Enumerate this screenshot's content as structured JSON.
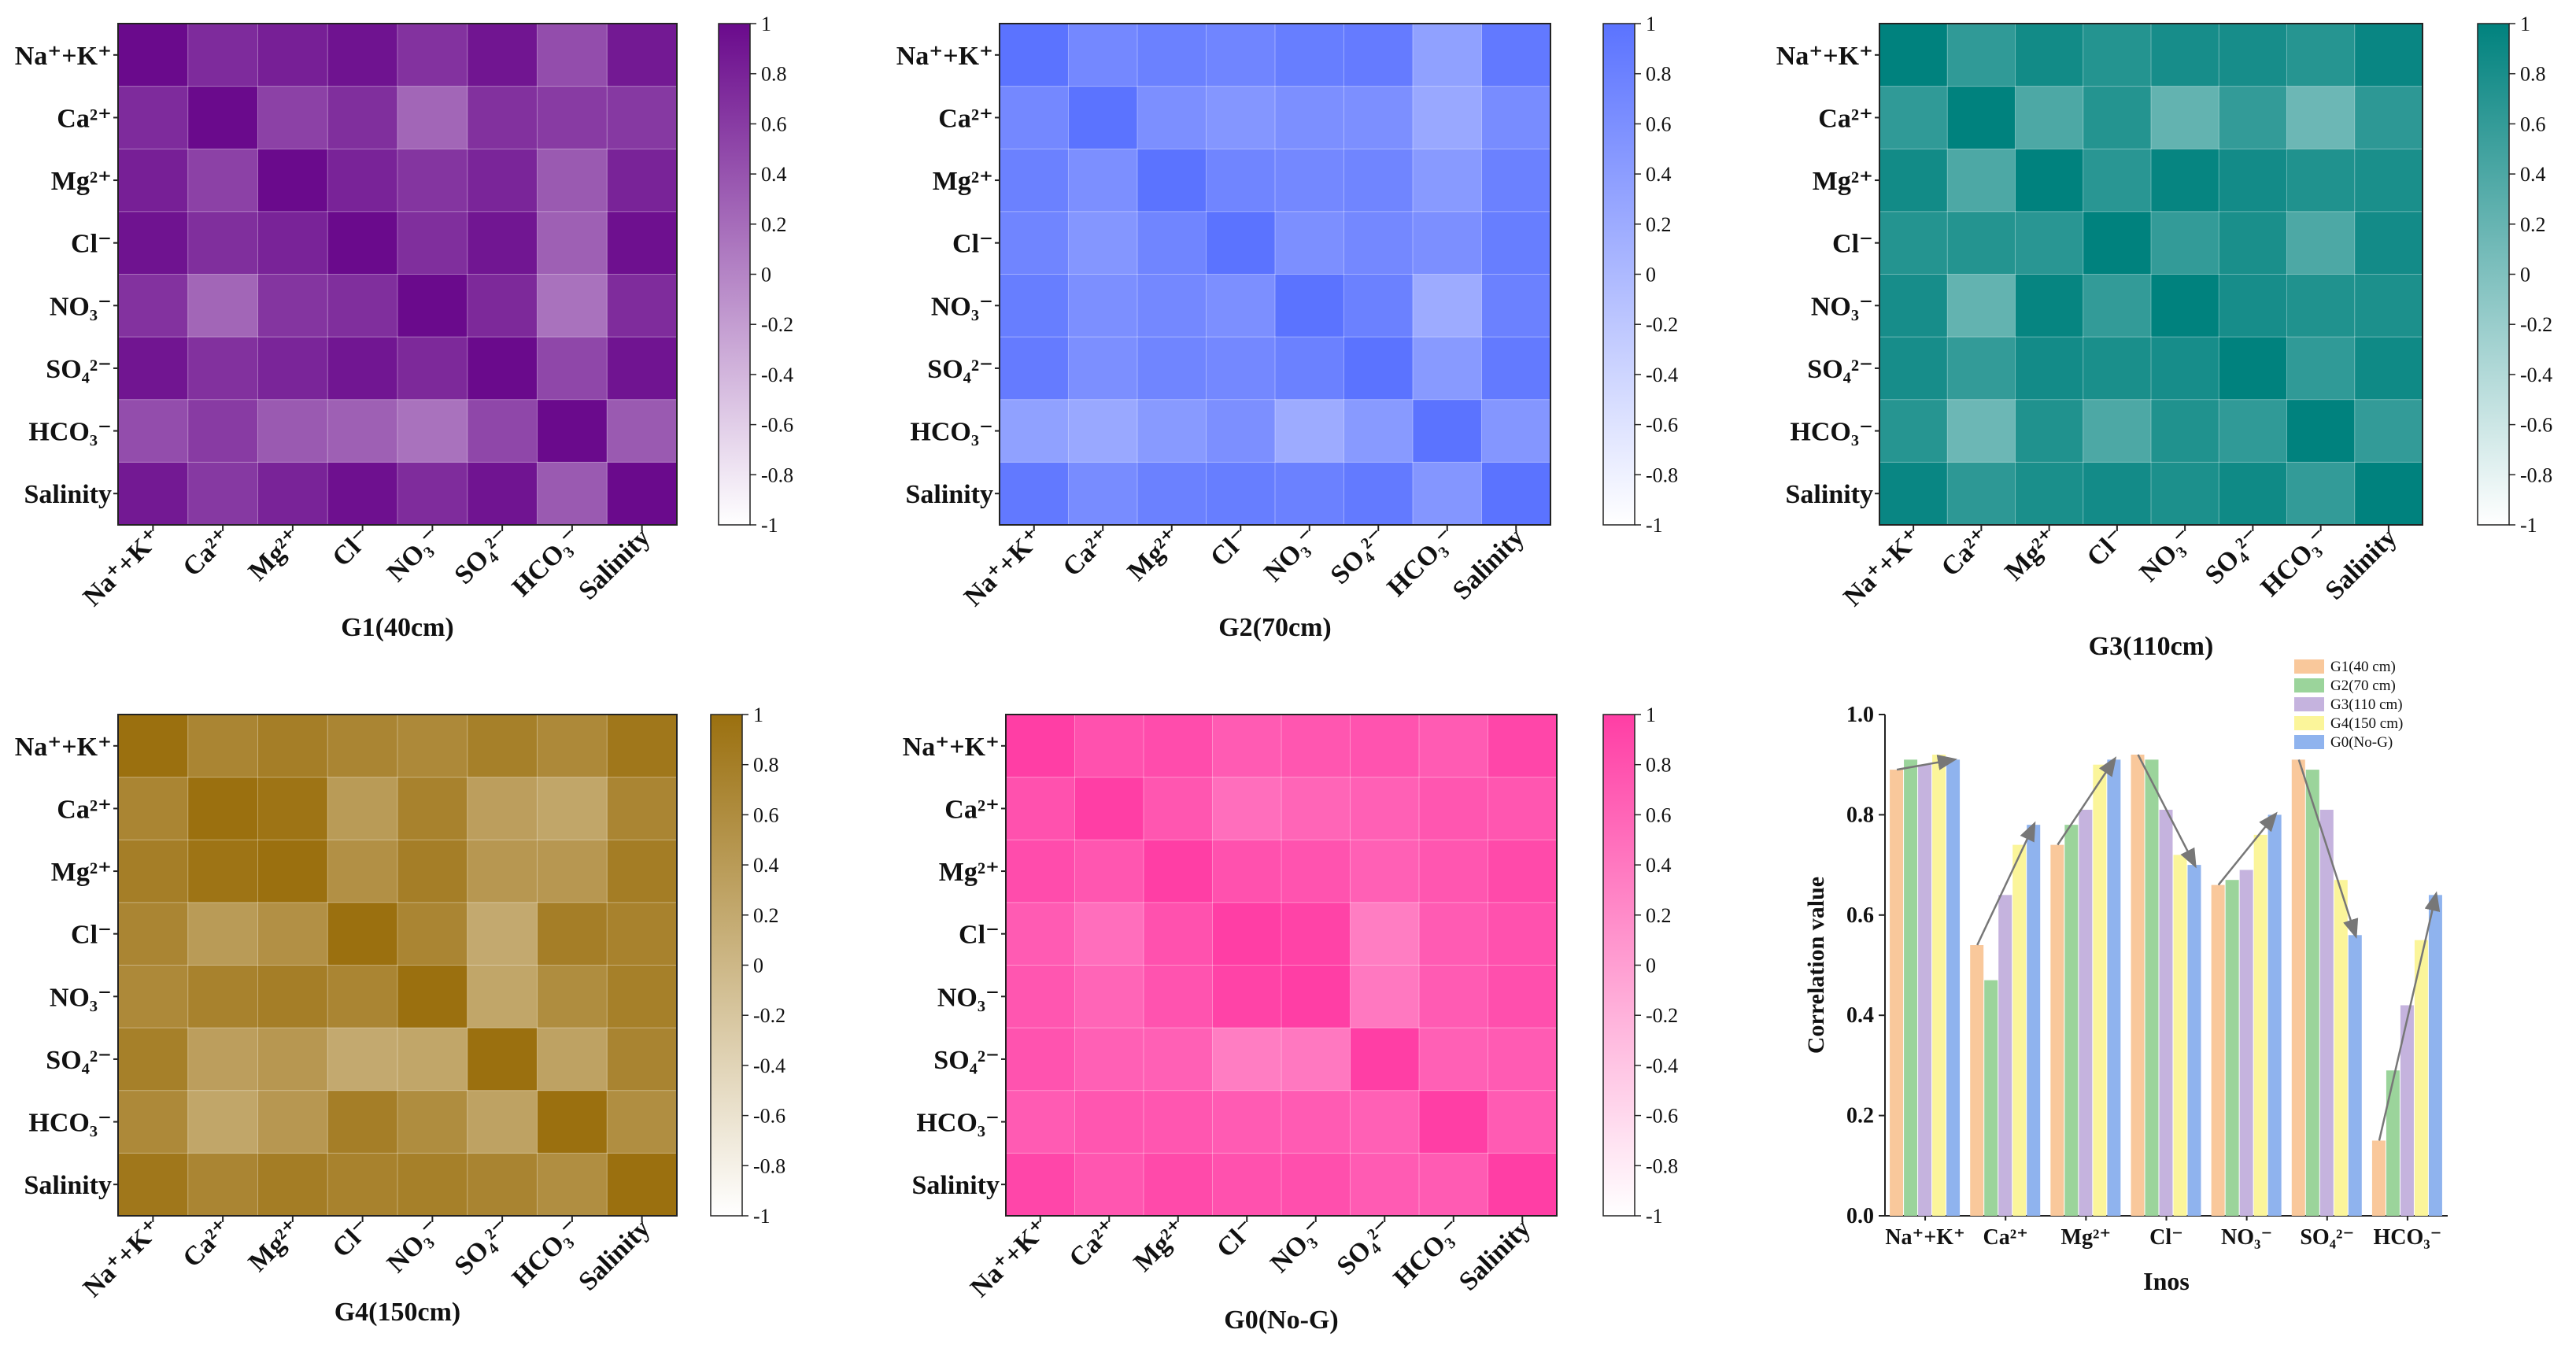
{
  "chart_data": [
    {
      "type": "heatmap",
      "title": "G1(40cm)",
      "scheme": "purple",
      "rows": [
        "Na⁺+K⁺",
        "Ca²⁺",
        "Mg²⁺",
        "Cl⁻",
        "NO₃⁻",
        "SO₄²⁻",
        "HCO₃⁻",
        "Salinity"
      ],
      "cols": [
        "Na⁺+K⁺",
        "Ca²⁺",
        "Mg²⁺",
        "Cl⁻",
        "NO₃⁻",
        "SO₄²⁻",
        "HCO₃⁻",
        "Salinity"
      ],
      "values": [
        [
          1.0,
          0.73,
          0.83,
          0.93,
          0.67,
          0.91,
          0.45,
          0.88
        ],
        [
          0.73,
          1.0,
          0.55,
          0.7,
          0.25,
          0.68,
          0.6,
          0.62
        ],
        [
          0.83,
          0.55,
          1.0,
          0.8,
          0.65,
          0.78,
          0.35,
          0.8
        ],
        [
          0.93,
          0.7,
          0.8,
          1.0,
          0.7,
          0.9,
          0.3,
          0.95
        ],
        [
          0.67,
          0.25,
          0.65,
          0.7,
          1.0,
          0.75,
          0.15,
          0.72
        ],
        [
          0.91,
          0.68,
          0.78,
          0.9,
          0.75,
          1.0,
          0.5,
          0.92
        ],
        [
          0.45,
          0.6,
          0.35,
          0.3,
          0.15,
          0.5,
          1.0,
          0.35
        ],
        [
          0.88,
          0.62,
          0.8,
          0.95,
          0.72,
          0.92,
          0.35,
          1.0
        ]
      ],
      "colorbar_ticks": [
        "1",
        "0.8",
        "0.6",
        "0.4",
        "0.2",
        "0",
        "-0.2",
        "-0.4",
        "-0.6",
        "-0.8",
        "-1"
      ],
      "vmin": -1,
      "vmax": 1
    },
    {
      "type": "heatmap",
      "title": "G2(70cm)",
      "scheme": "blue",
      "rows": [
        "Na⁺+K⁺",
        "Ca²⁺",
        "Mg²⁺",
        "Cl⁻",
        "NO₃⁻",
        "SO₄²⁻",
        "HCO₃⁻",
        "Salinity"
      ],
      "cols": [
        "Na⁺+K⁺",
        "Ca²⁺",
        "Mg²⁺",
        "Cl⁻",
        "NO₃⁻",
        "SO₄²⁻",
        "HCO₃⁻",
        "Salinity"
      ],
      "values": [
        [
          1.0,
          0.7,
          0.8,
          0.75,
          0.85,
          0.88,
          0.35,
          0.92
        ],
        [
          0.7,
          1.0,
          0.6,
          0.5,
          0.6,
          0.6,
          0.25,
          0.65
        ],
        [
          0.8,
          0.6,
          1.0,
          0.75,
          0.7,
          0.75,
          0.45,
          0.8
        ],
        [
          0.75,
          0.5,
          0.75,
          1.0,
          0.6,
          0.7,
          0.6,
          0.85
        ],
        [
          0.85,
          0.6,
          0.7,
          0.6,
          1.0,
          0.8,
          0.2,
          0.8
        ],
        [
          0.88,
          0.6,
          0.75,
          0.7,
          0.8,
          1.0,
          0.45,
          0.9
        ],
        [
          0.35,
          0.25,
          0.45,
          0.6,
          0.2,
          0.45,
          1.0,
          0.5
        ],
        [
          0.92,
          0.65,
          0.8,
          0.85,
          0.8,
          0.9,
          0.5,
          1.0
        ]
      ],
      "colorbar_ticks": [
        "1",
        "0.8",
        "0.6",
        "0.4",
        "0.2",
        "0",
        "-0.2",
        "-0.4",
        "-0.6",
        "-0.8",
        "-1"
      ],
      "vmin": -1,
      "vmax": 1
    },
    {
      "type": "heatmap",
      "title": "G3(110cm)",
      "scheme": "teal",
      "rows": [
        "Na⁺+K⁺",
        "Ca²⁺",
        "Mg²⁺",
        "Cl⁻",
        "NO₃⁻",
        "SO₄²⁻",
        "HCO₃⁻",
        "Salinity"
      ],
      "cols": [
        "Na⁺+K⁺",
        "Ca²⁺",
        "Mg²⁺",
        "Cl⁻",
        "NO₃⁻",
        "SO₄²⁻",
        "HCO₃⁻",
        "Salinity"
      ],
      "values": [
        [
          1.0,
          0.62,
          0.86,
          0.72,
          0.82,
          0.82,
          0.7,
          0.93
        ],
        [
          0.62,
          1.0,
          0.4,
          0.72,
          0.22,
          0.6,
          0.15,
          0.65
        ],
        [
          0.86,
          0.4,
          1.0,
          0.68,
          0.95,
          0.85,
          0.75,
          0.8
        ],
        [
          0.72,
          0.72,
          0.68,
          1.0,
          0.6,
          0.8,
          0.4,
          0.85
        ],
        [
          0.82,
          0.22,
          0.95,
          0.6,
          1.0,
          0.82,
          0.75,
          0.78
        ],
        [
          0.82,
          0.6,
          0.85,
          0.8,
          0.82,
          1.0,
          0.62,
          0.88
        ],
        [
          0.7,
          0.15,
          0.75,
          0.4,
          0.75,
          0.62,
          1.0,
          0.6
        ],
        [
          0.93,
          0.65,
          0.8,
          0.85,
          0.78,
          0.88,
          0.6,
          1.0
        ]
      ],
      "colorbar_ticks": [
        "1",
        "0.8",
        "0.6",
        "0.4",
        "0.2",
        "0",
        "-0.2",
        "-0.4",
        "-0.6",
        "-0.8",
        "-1"
      ],
      "vmin": -1,
      "vmax": 1
    },
    {
      "type": "heatmap",
      "title": "G4(150cm)",
      "scheme": "gold",
      "rows": [
        "Na⁺+K⁺",
        "Ca²⁺",
        "Mg²⁺",
        "Cl⁻",
        "NO₃⁻",
        "SO₄²⁻",
        "HCO₃⁻",
        "Salinity"
      ],
      "cols": [
        "Na⁺+K⁺",
        "Ca²⁺",
        "Mg²⁺",
        "Cl⁻",
        "NO₃⁻",
        "SO₄²⁻",
        "HCO₃⁻",
        "Salinity"
      ],
      "values": [
        [
          1.0,
          0.7,
          0.8,
          0.7,
          0.65,
          0.78,
          0.65,
          0.9
        ],
        [
          0.7,
          1.0,
          0.95,
          0.4,
          0.75,
          0.35,
          0.25,
          0.7
        ],
        [
          0.8,
          0.95,
          1.0,
          0.55,
          0.8,
          0.45,
          0.45,
          0.82
        ],
        [
          0.7,
          0.4,
          0.55,
          1.0,
          0.7,
          0.2,
          0.8,
          0.75
        ],
        [
          0.65,
          0.75,
          0.8,
          0.7,
          1.0,
          0.25,
          0.6,
          0.78
        ],
        [
          0.78,
          0.35,
          0.45,
          0.2,
          0.25,
          1.0,
          0.3,
          0.72
        ],
        [
          0.65,
          0.25,
          0.45,
          0.8,
          0.6,
          0.3,
          1.0,
          0.58
        ],
        [
          0.9,
          0.7,
          0.82,
          0.75,
          0.78,
          0.72,
          0.58,
          1.0
        ]
      ],
      "colorbar_ticks": [
        "1",
        "0.8",
        "0.6",
        "0.4",
        "0.2",
        "0",
        "-0.2",
        "-0.4",
        "-0.6",
        "-0.8",
        "-1"
      ],
      "vmin": -1,
      "vmax": 1
    },
    {
      "type": "heatmap",
      "title": "G0(No-G)",
      "scheme": "pink",
      "rows": [
        "Na⁺+K⁺",
        "Ca²⁺",
        "Mg²⁺",
        "Cl⁻",
        "NO₃⁻",
        "SO₄²⁻",
        "HCO₃⁻",
        "Salinity"
      ],
      "cols": [
        "Na⁺+K⁺",
        "Ca²⁺",
        "Mg²⁺",
        "Cl⁻",
        "NO₃⁻",
        "SO₄²⁻",
        "HCO₃⁻",
        "Salinity"
      ],
      "values": [
        [
          1.0,
          0.8,
          0.85,
          0.7,
          0.75,
          0.78,
          0.7,
          0.92
        ],
        [
          0.8,
          1.0,
          0.75,
          0.5,
          0.6,
          0.65,
          0.75,
          0.75
        ],
        [
          0.85,
          0.75,
          1.0,
          0.8,
          0.78,
          0.65,
          0.75,
          0.88
        ],
        [
          0.7,
          0.5,
          0.8,
          1.0,
          0.95,
          0.35,
          0.7,
          0.8
        ],
        [
          0.75,
          0.6,
          0.78,
          0.95,
          1.0,
          0.4,
          0.7,
          0.82
        ],
        [
          0.78,
          0.65,
          0.65,
          0.35,
          0.4,
          1.0,
          0.65,
          0.7
        ],
        [
          0.7,
          0.75,
          0.75,
          0.7,
          0.7,
          0.65,
          1.0,
          0.7
        ],
        [
          0.92,
          0.75,
          0.88,
          0.8,
          0.82,
          0.7,
          0.7,
          1.0
        ]
      ],
      "colorbar_ticks": [
        "1",
        "0.8",
        "0.6",
        "0.4",
        "0.2",
        "0",
        "-0.2",
        "-0.4",
        "-0.6",
        "-0.8",
        "-1"
      ],
      "vmin": -1,
      "vmax": 1
    },
    {
      "type": "bar",
      "xlabel": "Inos",
      "ylabel": "Correlation value",
      "ylim": [
        0,
        1.0
      ],
      "yticks": [
        "0.0",
        "0.2",
        "0.4",
        "0.6",
        "0.8",
        "1.0"
      ],
      "categories": [
        "Na⁺+K⁺",
        "Ca²⁺",
        "Mg²⁺",
        "Cl⁻",
        "NO₃⁻",
        "SO₄²⁻",
        "HCO₃⁻"
      ],
      "series": [
        {
          "name": "G1(40 cm)",
          "color": "#f9c89b",
          "values": [
            0.89,
            0.54,
            0.74,
            0.92,
            0.66,
            0.91,
            0.15
          ]
        },
        {
          "name": "G2(70 cm)",
          "color": "#9bd49b",
          "values": [
            0.91,
            0.47,
            0.78,
            0.91,
            0.67,
            0.89,
            0.29
          ]
        },
        {
          "name": "G3(110 cm)",
          "color": "#c5b3de",
          "values": [
            0.9,
            0.64,
            0.81,
            0.81,
            0.69,
            0.81,
            0.42
          ]
        },
        {
          "name": "G4(150 cm)",
          "color": "#fbf59a",
          "values": [
            0.92,
            0.74,
            0.9,
            0.72,
            0.76,
            0.67,
            0.55
          ]
        },
        {
          "name": "G0(No-G)",
          "color": "#8fb3ee",
          "values": [
            0.91,
            0.78,
            0.91,
            0.7,
            0.8,
            0.56,
            0.64
          ]
        }
      ],
      "legend": "top-right"
    }
  ]
}
